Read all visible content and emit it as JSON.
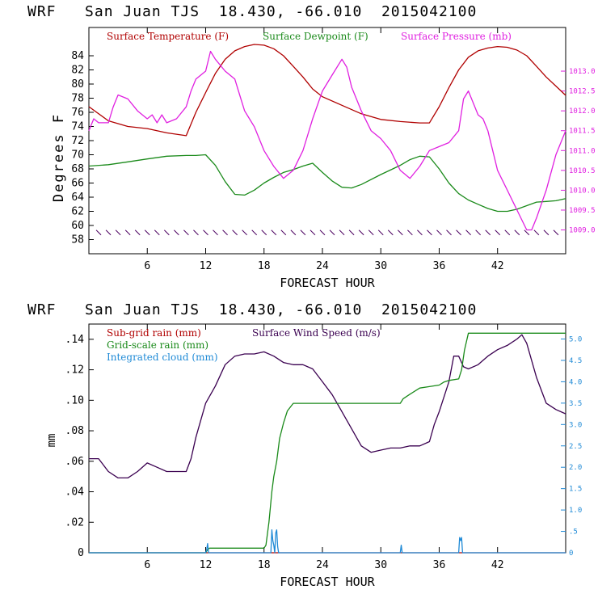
{
  "chart_data": [
    {
      "type": "line",
      "title": "WRF   San Juan TJS  18.430, -66.010  2015042100",
      "xlabel": "FORECAST HOUR",
      "ylabel": "Degrees F",
      "xlim": [
        0,
        49
      ],
      "ylim": [
        56,
        88
      ],
      "y2lim": [
        1008.4,
        1014.1
      ],
      "x_ticks": [
        6,
        12,
        18,
        24,
        30,
        36,
        42
      ],
      "y_ticks": [
        58,
        60,
        62,
        64,
        66,
        68,
        70,
        72,
        74,
        76,
        78,
        80,
        82,
        84
      ],
      "y2_ticks": [
        "1009.0",
        "1009.5",
        "1010.0",
        "1010.5",
        "1011.0",
        "1011.5",
        "1012.0",
        "1012.5",
        "1013.0"
      ],
      "y2_tick_values": [
        1009.0,
        1009.5,
        1010.0,
        1010.5,
        1011.0,
        1011.5,
        1012.0,
        1012.5,
        1013.0
      ],
      "legend_location": "top",
      "series": [
        {
          "name": "Surface Temperature (F)",
          "color": "#b00000",
          "axis": "left",
          "x": [
            0,
            2,
            4,
            6,
            8,
            10,
            11,
            12,
            13,
            14,
            15,
            16,
            17,
            18,
            19,
            20,
            21,
            22,
            23,
            24,
            26,
            28,
            30,
            32,
            34,
            35,
            36,
            37,
            38,
            39,
            40,
            41,
            42,
            43,
            44,
            45,
            46,
            47,
            48,
            49
          ],
          "y": [
            76.8,
            74.8,
            74.0,
            73.7,
            73.1,
            72.7,
            76.0,
            78.8,
            81.5,
            83.5,
            84.7,
            85.3,
            85.6,
            85.5,
            85.0,
            84.0,
            82.5,
            81.0,
            79.3,
            78.2,
            77.0,
            75.8,
            75.0,
            74.7,
            74.5,
            74.5,
            76.8,
            79.5,
            82.0,
            83.8,
            84.7,
            85.1,
            85.3,
            85.2,
            84.8,
            84.0,
            82.5,
            81.0,
            79.7,
            78.4
          ]
        },
        {
          "name": "Surface Dewpoint (F)",
          "color": "#1a8a1a",
          "axis": "left",
          "x": [
            0,
            2,
            4,
            6,
            8,
            10,
            11,
            12,
            13,
            14,
            15,
            16,
            17,
            18,
            19,
            20,
            21,
            22,
            23,
            24,
            25,
            26,
            27,
            28,
            30,
            32,
            33,
            34,
            35,
            36,
            37,
            38,
            39,
            40,
            41,
            42,
            43,
            44,
            45,
            46,
            47,
            48,
            49
          ],
          "y": [
            68.4,
            68.6,
            69.0,
            69.4,
            69.8,
            69.9,
            69.9,
            70.0,
            68.5,
            66.2,
            64.4,
            64.3,
            65.0,
            66.0,
            66.8,
            67.5,
            67.9,
            68.4,
            68.8,
            67.5,
            66.3,
            65.4,
            65.3,
            65.8,
            67.2,
            68.5,
            69.3,
            69.8,
            69.7,
            68.0,
            66.0,
            64.5,
            63.6,
            63.0,
            62.4,
            62.0,
            62.0,
            62.3,
            62.8,
            63.3,
            63.4,
            63.5,
            63.8
          ]
        },
        {
          "name": "Surface Pressure (mb)",
          "color": "#e020e0",
          "axis": "right",
          "x": [
            0,
            0.5,
            1,
            2,
            2.5,
            3,
            4,
            5,
            6,
            6.5,
            7,
            7.5,
            8,
            9,
            10,
            10.5,
            11,
            12,
            12.5,
            13,
            14,
            15,
            15.5,
            16,
            16.5,
            17,
            18,
            19,
            20,
            20.5,
            21,
            22,
            23,
            24,
            25,
            26,
            26.5,
            27,
            28,
            29,
            30,
            31,
            32,
            33,
            34,
            35,
            36,
            37,
            38,
            38.5,
            39,
            40,
            40.5,
            41,
            42,
            43,
            44,
            45,
            45.5,
            46,
            47,
            48,
            49
          ],
          "y": [
            1011.5,
            1011.8,
            1011.7,
            1011.7,
            1012.1,
            1012.4,
            1012.3,
            1012.0,
            1011.8,
            1011.9,
            1011.7,
            1011.9,
            1011.7,
            1011.8,
            1012.1,
            1012.5,
            1012.8,
            1013.0,
            1013.5,
            1013.3,
            1013.0,
            1012.8,
            1012.4,
            1012.0,
            1011.8,
            1011.6,
            1011.0,
            1010.6,
            1010.3,
            1010.4,
            1010.5,
            1011.0,
            1011.8,
            1012.5,
            1012.9,
            1013.3,
            1013.1,
            1012.6,
            1012.0,
            1011.5,
            1011.3,
            1011.0,
            1010.5,
            1010.3,
            1010.6,
            1011.0,
            1011.1,
            1011.2,
            1011.5,
            1012.3,
            1012.5,
            1011.9,
            1011.8,
            1011.5,
            1010.5,
            1010.0,
            1009.5,
            1009.0,
            1009.0,
            1009.3,
            1010.0,
            1010.9,
            1011.5
          ]
        }
      ],
      "wind_barbs": {
        "color": "#4b0060",
        "axis_value": 59
      }
    },
    {
      "type": "line",
      "title": "WRF   San Juan TJS  18.430, -66.010  2015042100",
      "xlabel": "FORECAST HOUR",
      "ylabel": "mm",
      "xlim": [
        0,
        49
      ],
      "ylim": [
        0,
        0.15
      ],
      "y2lim": [
        0,
        5.35
      ],
      "x_ticks": [
        6,
        12,
        18,
        24,
        30,
        36,
        42
      ],
      "y_ticks": [
        0,
        0.02,
        0.04,
        0.06,
        0.08,
        0.1,
        0.12,
        0.14
      ],
      "y_tick_labels": [
        "0",
        ".02",
        ".04",
        ".06",
        ".08",
        ".10",
        ".12",
        ".14"
      ],
      "y2_ticks": [
        "0",
        ".5",
        "1.0",
        "1.5",
        "2.0",
        "2.5",
        "3.0",
        "3.5",
        "4.0",
        "4.5",
        "5.0"
      ],
      "y2_tick_values": [
        0,
        0.5,
        1.0,
        1.5,
        2.0,
        2.5,
        3.0,
        3.5,
        4.0,
        4.5,
        5.0
      ],
      "legend_location": "top-left",
      "series": [
        {
          "name": "Sub-grid rain (mm)",
          "color": "#b00000",
          "axis": "left",
          "x": [
            0,
            49
          ],
          "y": [
            0,
            0
          ]
        },
        {
          "name": "Surface Wind Speed (m/s)",
          "color": "#3a0050",
          "axis": "right",
          "x": [
            0,
            1,
            2,
            3,
            4,
            5,
            6,
            7,
            8,
            9,
            10,
            10.5,
            11,
            12,
            13,
            14,
            15,
            16,
            17,
            18,
            19,
            20,
            21,
            22,
            23,
            24,
            25,
            26,
            27,
            28,
            29,
            30,
            31,
            32,
            33,
            34,
            35,
            35.5,
            36,
            37,
            37.5,
            38,
            38.5,
            39,
            40,
            41,
            42,
            43,
            44,
            44.5,
            45,
            46,
            47,
            48,
            49
          ],
          "y": [
            2.2,
            2.2,
            1.9,
            1.75,
            1.75,
            1.9,
            2.1,
            2.0,
            1.9,
            1.9,
            1.9,
            2.2,
            2.7,
            3.5,
            3.9,
            4.4,
            4.6,
            4.65,
            4.65,
            4.7,
            4.6,
            4.45,
            4.4,
            4.4,
            4.3,
            4.0,
            3.7,
            3.3,
            2.9,
            2.5,
            2.35,
            2.4,
            2.45,
            2.45,
            2.5,
            2.5,
            2.6,
            3.0,
            3.3,
            4.0,
            4.6,
            4.6,
            4.35,
            4.3,
            4.4,
            4.6,
            4.75,
            4.85,
            5.0,
            5.1,
            4.9,
            4.1,
            3.5,
            3.35,
            3.25
          ]
        },
        {
          "name": "Grid-scale rain (mm)",
          "color": "#1a8a1a",
          "axis": "left",
          "x": [
            0,
            12,
            12.2,
            12.4,
            13,
            18,
            18.2,
            18.5,
            18.8,
            19,
            19.3,
            19.6,
            20,
            20.4,
            21,
            22,
            24,
            26,
            28,
            30,
            31,
            32,
            32.3,
            33,
            34,
            35,
            36,
            36.5,
            37,
            38,
            38.3,
            38.6,
            39,
            39.5,
            40,
            45,
            49
          ],
          "y": [
            0,
            0,
            0.002,
            0.003,
            0.003,
            0.003,
            0.005,
            0.02,
            0.04,
            0.05,
            0.06,
            0.075,
            0.085,
            0.093,
            0.098,
            0.098,
            0.098,
            0.098,
            0.098,
            0.098,
            0.098,
            0.098,
            0.101,
            0.104,
            0.108,
            0.109,
            0.11,
            0.112,
            0.113,
            0.114,
            0.12,
            0.133,
            0.144,
            0.144,
            0.144,
            0.144,
            0.144
          ]
        },
        {
          "name": "Integrated cloud (mm)",
          "color": "#1f8ad6",
          "axis": "left",
          "x": [
            0,
            12,
            12.1,
            12.2,
            12.3,
            18.7,
            18.8,
            18.9,
            19.0,
            19.1,
            19.2,
            19.3,
            19.4,
            19.5,
            32.0,
            32.1,
            32.2,
            38.0,
            38.1,
            38.2,
            38.3,
            38.4,
            49
          ],
          "y": [
            0,
            0,
            0.002,
            0.006,
            0,
            0,
            0.015,
            0.008,
            0.005,
            0,
            0.013,
            0.015,
            0.004,
            0,
            0,
            0.005,
            0,
            0,
            0.01,
            0.008,
            0.01,
            0,
            0
          ]
        }
      ]
    }
  ]
}
